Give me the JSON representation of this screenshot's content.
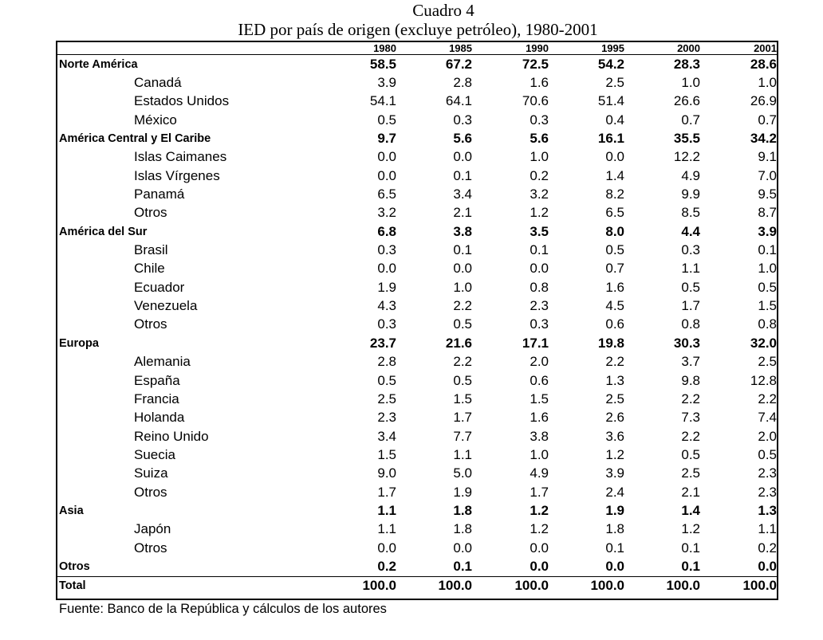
{
  "title": "Cuadro 4",
  "subtitle": "IED por país de origen (excluye petróleo), 1980-2001",
  "years": [
    "1980",
    "1985",
    "1990",
    "1995",
    "2000",
    "2001"
  ],
  "rows": [
    {
      "label": "Norte América",
      "group": true,
      "values": [
        "58.5",
        "67.2",
        "72.5",
        "54.2",
        "28.3",
        "28.6"
      ]
    },
    {
      "label": "Canadá",
      "group": false,
      "values": [
        "3.9",
        "2.8",
        "1.6",
        "2.5",
        "1.0",
        "1.0"
      ]
    },
    {
      "label": "Estados Unidos",
      "group": false,
      "values": [
        "54.1",
        "64.1",
        "70.6",
        "51.4",
        "26.6",
        "26.9"
      ]
    },
    {
      "label": "México",
      "group": false,
      "values": [
        "0.5",
        "0.3",
        "0.3",
        "0.4",
        "0.7",
        "0.7"
      ]
    },
    {
      "label": "América Central y El Caribe",
      "group": true,
      "values": [
        "9.7",
        "5.6",
        "5.6",
        "16.1",
        "35.5",
        "34.2"
      ]
    },
    {
      "label": "Islas Caimanes",
      "group": false,
      "values": [
        "0.0",
        "0.0",
        "1.0",
        "0.0",
        "12.2",
        "9.1"
      ]
    },
    {
      "label": "Islas Vírgenes",
      "group": false,
      "values": [
        "0.0",
        "0.1",
        "0.2",
        "1.4",
        "4.9",
        "7.0"
      ]
    },
    {
      "label": "Panamá",
      "group": false,
      "values": [
        "6.5",
        "3.4",
        "3.2",
        "8.2",
        "9.9",
        "9.5"
      ]
    },
    {
      "label": "Otros",
      "group": false,
      "values": [
        "3.2",
        "2.1",
        "1.2",
        "6.5",
        "8.5",
        "8.7"
      ]
    },
    {
      "label": "América del Sur",
      "group": true,
      "values": [
        "6.8",
        "3.8",
        "3.5",
        "8.0",
        "4.4",
        "3.9"
      ]
    },
    {
      "label": "Brasil",
      "group": false,
      "values": [
        "0.3",
        "0.1",
        "0.1",
        "0.5",
        "0.3",
        "0.1"
      ]
    },
    {
      "label": "Chile",
      "group": false,
      "values": [
        "0.0",
        "0.0",
        "0.0",
        "0.7",
        "1.1",
        "1.0"
      ]
    },
    {
      "label": "Ecuador",
      "group": false,
      "values": [
        "1.9",
        "1.0",
        "0.8",
        "1.6",
        "0.5",
        "0.5"
      ]
    },
    {
      "label": "Venezuela",
      "group": false,
      "values": [
        "4.3",
        "2.2",
        "2.3",
        "4.5",
        "1.7",
        "1.5"
      ]
    },
    {
      "label": "Otros",
      "group": false,
      "values": [
        "0.3",
        "0.5",
        "0.3",
        "0.6",
        "0.8",
        "0.8"
      ]
    },
    {
      "label": "Europa",
      "group": true,
      "values": [
        "23.7",
        "21.6",
        "17.1",
        "19.8",
        "30.3",
        "32.0"
      ]
    },
    {
      "label": "Alemania",
      "group": false,
      "values": [
        "2.8",
        "2.2",
        "2.0",
        "2.2",
        "3.7",
        "2.5"
      ]
    },
    {
      "label": "España",
      "group": false,
      "values": [
        "0.5",
        "0.5",
        "0.6",
        "1.3",
        "9.8",
        "12.8"
      ]
    },
    {
      "label": "Francia",
      "group": false,
      "values": [
        "2.5",
        "1.5",
        "1.5",
        "2.5",
        "2.2",
        "2.2"
      ]
    },
    {
      "label": "Holanda",
      "group": false,
      "values": [
        "2.3",
        "1.7",
        "1.6",
        "2.6",
        "7.3",
        "7.4"
      ]
    },
    {
      "label": "Reino Unido",
      "group": false,
      "values": [
        "3.4",
        "7.7",
        "3.8",
        "3.6",
        "2.2",
        "2.0"
      ]
    },
    {
      "label": "Suecia",
      "group": false,
      "values": [
        "1.5",
        "1.1",
        "1.0",
        "1.2",
        "0.5",
        "0.5"
      ]
    },
    {
      "label": "Suiza",
      "group": false,
      "values": [
        "9.0",
        "5.0",
        "4.9",
        "3.9",
        "2.5",
        "2.3"
      ]
    },
    {
      "label": "Otros",
      "group": false,
      "values": [
        "1.7",
        "1.9",
        "1.7",
        "2.4",
        "2.1",
        "2.3"
      ]
    },
    {
      "label": "Asia",
      "group": true,
      "values": [
        "1.1",
        "1.8",
        "1.2",
        "1.9",
        "1.4",
        "1.3"
      ]
    },
    {
      "label": "Japón",
      "group": false,
      "values": [
        "1.1",
        "1.8",
        "1.2",
        "1.8",
        "1.2",
        "1.1"
      ]
    },
    {
      "label": "Otros",
      "group": false,
      "values": [
        "0.0",
        "0.0",
        "0.0",
        "0.1",
        "0.1",
        "0.2"
      ]
    },
    {
      "label": "Otros",
      "group": true,
      "values": [
        "0.2",
        "0.1",
        "0.0",
        "0.0",
        "0.1",
        "0.0"
      ]
    },
    {
      "label": "Total",
      "group": true,
      "total": true,
      "values": [
        "100.0",
        "100.0",
        "100.0",
        "100.0",
        "100.0",
        "100.0"
      ]
    }
  ],
  "source": "Fuente: Banco de la República y cálculos de los autores"
}
